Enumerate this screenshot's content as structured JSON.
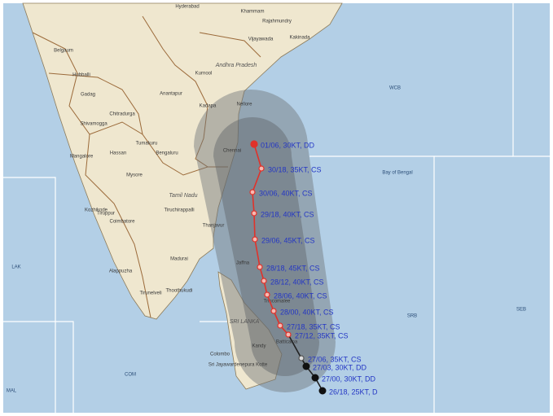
{
  "map": {
    "places": [
      {
        "name": "Hyderabad"
      },
      {
        "name": "Khammam"
      },
      {
        "name": "Rajahmundry"
      },
      {
        "name": "Kakinada"
      },
      {
        "name": "Vijayawada"
      },
      {
        "name": "Andhra Pradesh"
      },
      {
        "name": "Nellore"
      },
      {
        "name": "Chennai"
      },
      {
        "name": "Bengaluru"
      },
      {
        "name": "Mysore"
      },
      {
        "name": "Mangalore"
      },
      {
        "name": "Shivamogga"
      },
      {
        "name": "Hubballi"
      },
      {
        "name": "Belgaum"
      },
      {
        "name": "Gadag"
      },
      {
        "name": "Anantapur"
      },
      {
        "name": "Chitradurga"
      },
      {
        "name": "Tumakuru"
      },
      {
        "name": "Hassan"
      },
      {
        "name": "Kozhikode"
      },
      {
        "name": "Coimbatore"
      },
      {
        "name": "Tiruppur"
      },
      {
        "name": "Tamil Nadu"
      },
      {
        "name": "Tiruchirappalli"
      },
      {
        "name": "Thanjavur"
      },
      {
        "name": "Madurai"
      },
      {
        "name": "Tirunelveli"
      },
      {
        "name": "Thoothukudi"
      },
      {
        "name": "Alappuzha"
      },
      {
        "name": "Jaffna"
      },
      {
        "name": "SRI LANKA"
      },
      {
        "name": "Trincomalee"
      },
      {
        "name": "Batticaloa"
      },
      {
        "name": "Kandy"
      },
      {
        "name": "Colombo"
      },
      {
        "name": "Sri Jayawardenepura Kotte"
      },
      {
        "name": "Kurnool"
      },
      {
        "name": "Kadapa"
      }
    ],
    "seas": [
      {
        "name": "Bay of Bengal"
      },
      {
        "name": "WCB"
      },
      {
        "name": "SRB"
      },
      {
        "name": "SEB"
      },
      {
        "name": "COM"
      },
      {
        "name": "LAK"
      },
      {
        "name": "MAL"
      }
    ]
  },
  "track": {
    "points": [
      {
        "label": "01/06, 30KT, DD"
      },
      {
        "label": "30/18, 35KT, CS"
      },
      {
        "label": "30/06, 40KT, CS"
      },
      {
        "label": "29/18, 40KT, CS"
      },
      {
        "label": "29/06, 45KT, CS"
      },
      {
        "label": "28/18, 45KT, CS"
      },
      {
        "label": "28/12, 40KT, CS"
      },
      {
        "label": "28/06, 40KT, CS"
      },
      {
        "label": "28/00, 40KT, CS"
      },
      {
        "label": "27/18, 35KT, CS"
      },
      {
        "label": "27/12, 35KT, CS"
      },
      {
        "label": "27/06, 35KT, CS"
      },
      {
        "label": "27/03, 30KT, DD"
      },
      {
        "label": "27/00, 30KT, DD"
      },
      {
        "label": "26/18, 25KT, D"
      }
    ]
  }
}
